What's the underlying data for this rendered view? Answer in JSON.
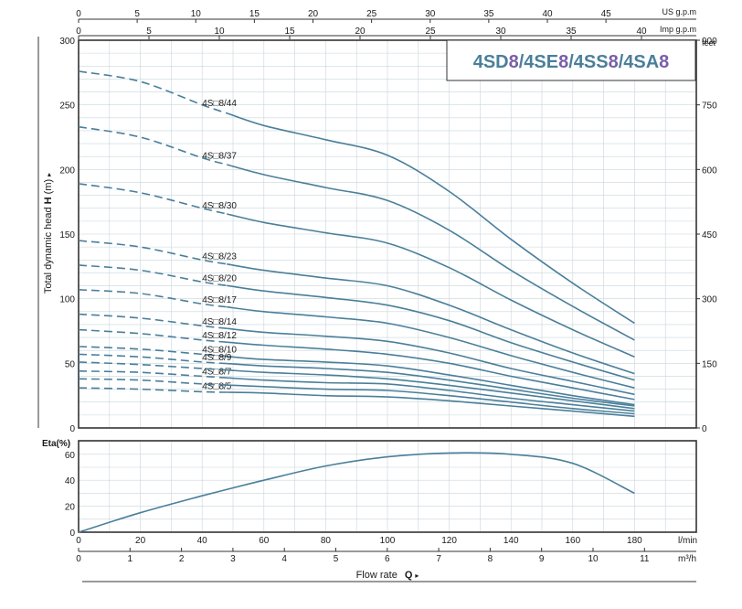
{
  "colors": {
    "curve": "#4a7f9a",
    "grid": "#c8d6dc",
    "frame": "#333333",
    "title_main": "#4a7f9a",
    "title_accent": "#7a5ea8"
  },
  "title": {
    "parts": [
      {
        "text": "4SD",
        "accent": false
      },
      {
        "text": "8",
        "accent": true
      },
      {
        "text": "/4SE",
        "accent": false
      },
      {
        "text": "8",
        "accent": true
      },
      {
        "text": "/4SS",
        "accent": false
      },
      {
        "text": "8",
        "accent": true
      },
      {
        "text": "/4SA",
        "accent": false
      },
      {
        "text": "8",
        "accent": true
      }
    ]
  },
  "top_axes": {
    "us_gpm": {
      "label": "US g.p.m",
      "ticks": [
        "0",
        "5",
        "10",
        "15",
        "20",
        "25",
        "30",
        "35",
        "40",
        "45"
      ]
    },
    "imp_gpm": {
      "label": "Imp g.p.m",
      "ticks": [
        "0",
        "5",
        "10",
        "15",
        "20",
        "25",
        "30",
        "35",
        "40"
      ]
    }
  },
  "head_axis": {
    "label_pre": "Total dynamic head ",
    "label_bold": "H",
    "label_post": " (m)",
    "arrow": "▸",
    "ticks": [
      "0",
      "50",
      "100",
      "150",
      "200",
      "250",
      "300"
    ]
  },
  "feet_axis": {
    "label": "feet",
    "ticks": [
      "0",
      "150",
      "300",
      "450",
      "600",
      "750",
      "900"
    ]
  },
  "eta_axis": {
    "label": "Eta(%)",
    "ticks": [
      "0",
      "20",
      "40",
      "60"
    ]
  },
  "bottom_axes": {
    "lmin": {
      "label": "l/min",
      "ticks": [
        "0",
        "20",
        "40",
        "60",
        "80",
        "100",
        "120",
        "140",
        "160",
        "180"
      ]
    },
    "m3h": {
      "label": "m³/h",
      "ticks": [
        "0",
        "1",
        "2",
        "3",
        "4",
        "5",
        "6",
        "7",
        "8",
        "9",
        "10",
        "11"
      ]
    },
    "flow_label": "Flow rate",
    "flow_symbol": "Q",
    "flow_arrow": "▸"
  },
  "chart_data": [
    {
      "type": "line",
      "title": "4SD8/4SE8/4SS8/4SA8",
      "xlabel": "Flow rate Q (l/min)",
      "ylabel": "Total dynamic head H (m)",
      "xlim": [
        0,
        200
      ],
      "ylim": [
        0,
        300
      ],
      "grid": true,
      "dashed_until_x": 48,
      "series": [
        {
          "name": "4S□8/44",
          "x": [
            0,
            20,
            40,
            60,
            80,
            100,
            120,
            140,
            160,
            180
          ],
          "y": [
            276,
            268,
            250,
            234,
            223,
            211,
            183,
            146,
            112,
            81
          ]
        },
        {
          "name": "4S□8/37",
          "x": [
            0,
            20,
            40,
            60,
            80,
            100,
            120,
            140,
            160,
            180
          ],
          "y": [
            233,
            225,
            209,
            196,
            186,
            176,
            153,
            122,
            94,
            68
          ]
        },
        {
          "name": "4S□8/30",
          "x": [
            0,
            20,
            40,
            60,
            80,
            100,
            120,
            140,
            160,
            180
          ],
          "y": [
            189,
            182,
            170,
            159,
            151,
            143,
            124,
            99,
            76,
            55
          ]
        },
        {
          "name": "4S□8/23",
          "x": [
            0,
            20,
            40,
            60,
            80,
            100,
            120,
            140,
            160,
            180
          ],
          "y": [
            145,
            140,
            130,
            122,
            116,
            110,
            95,
            76,
            58,
            42
          ]
        },
        {
          "name": "4S□8/20",
          "x": [
            0,
            20,
            40,
            60,
            80,
            100,
            120,
            140,
            160,
            180
          ],
          "y": [
            126,
            122,
            113,
            106,
            101,
            95,
            83,
            66,
            51,
            37
          ]
        },
        {
          "name": "4S□8/17",
          "x": [
            0,
            20,
            40,
            60,
            80,
            100,
            120,
            140,
            160,
            180
          ],
          "y": [
            107,
            104,
            96,
            90,
            86,
            81,
            70,
            56,
            43,
            31
          ]
        },
        {
          "name": "4S□8/14",
          "x": [
            0,
            20,
            40,
            60,
            80,
            100,
            120,
            140,
            160,
            180
          ],
          "y": [
            88,
            85,
            79,
            74,
            71,
            67,
            58,
            46,
            36,
            26
          ]
        },
        {
          "name": "4S□8/12",
          "x": [
            0,
            20,
            40,
            60,
            80,
            100,
            120,
            140,
            160,
            180
          ],
          "y": [
            76,
            73,
            68,
            64,
            61,
            57,
            50,
            40,
            31,
            22
          ]
        },
        {
          "name": "4S□8/10",
          "x": [
            0,
            20,
            40,
            60,
            80,
            100,
            120,
            140,
            160,
            180
          ],
          "y": [
            63,
            61,
            57,
            53,
            51,
            48,
            41,
            33,
            25,
            18
          ]
        },
        {
          "name": "4S□8/9",
          "x": [
            0,
            20,
            40,
            60,
            80,
            100,
            120,
            140,
            160,
            180
          ],
          "y": [
            57,
            55,
            51,
            48,
            46,
            43,
            37,
            30,
            23,
            17
          ]
        },
        {
          "name": "4S□8/7",
          "x": [
            0,
            20,
            40,
            60,
            80,
            100,
            120,
            140,
            160,
            180
          ],
          "y": [
            44,
            43,
            40,
            37,
            35,
            34,
            29,
            23,
            18,
            13
          ]
        },
        {
          "name": "4S□8/5",
          "x": [
            0,
            20,
            40,
            60,
            80,
            100,
            120,
            140,
            160,
            180
          ],
          "y": [
            31,
            30,
            28,
            27,
            25,
            24,
            21,
            17,
            13,
            9
          ]
        }
      ],
      "extra_unlabeled_curves": [
        {
          "x": [
            0,
            20,
            40,
            60,
            80,
            100,
            120,
            140,
            160,
            180
          ],
          "y": [
            51,
            49,
            46,
            43,
            41,
            38,
            33,
            27,
            21,
            15
          ]
        },
        {
          "x": [
            0,
            20,
            40,
            60,
            80,
            100,
            120,
            140,
            160,
            180
          ],
          "y": [
            38,
            37,
            34,
            32,
            30,
            29,
            25,
            20,
            15,
            11
          ]
        }
      ]
    },
    {
      "type": "line",
      "title": "",
      "xlabel": "Flow rate Q (l/min)",
      "ylabel": "Eta(%)",
      "xlim": [
        0,
        200
      ],
      "ylim": [
        0,
        70
      ],
      "grid": true,
      "series": [
        {
          "name": "",
          "x": [
            0,
            20,
            40,
            60,
            80,
            100,
            120,
            140,
            160,
            180
          ],
          "y": [
            0,
            15,
            28,
            40,
            51,
            58,
            61,
            60,
            53,
            30
          ]
        }
      ]
    }
  ]
}
